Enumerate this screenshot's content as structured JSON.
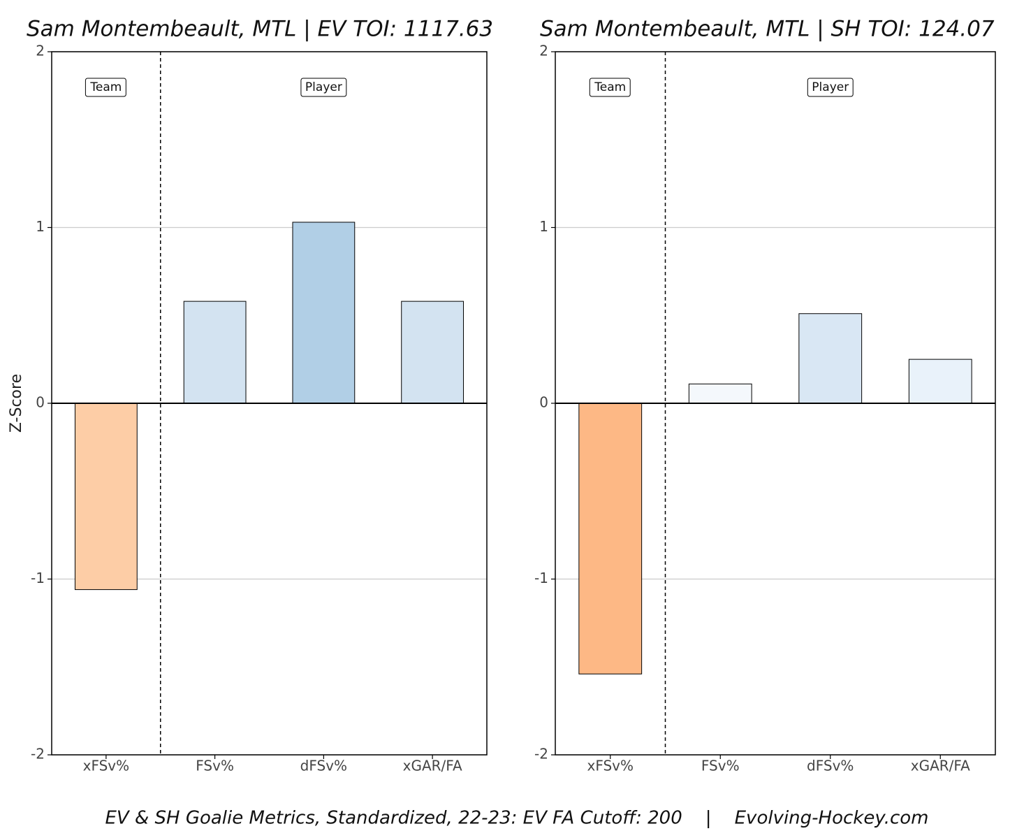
{
  "chart_data": [
    {
      "type": "bar",
      "title": "Sam Montembeault, MTL | EV TOI: 1117.63",
      "ylabel": "Z-Score",
      "categories": [
        "xFSv%",
        "FSv%",
        "dFSv%",
        "xGAR/FA"
      ],
      "values": [
        -1.06,
        0.58,
        1.03,
        0.58
      ],
      "colors": [
        "#fdcda6",
        "#d3e3f1",
        "#b1cfe6",
        "#d3e3f1"
      ],
      "annotations": [
        "Team",
        "Player"
      ],
      "ylim": [
        -2,
        2
      ],
      "yticks": [
        -2,
        -1,
        0,
        1,
        2
      ],
      "grid": true
    },
    {
      "type": "bar",
      "title": "Sam Montembeault, MTL | SH TOI: 124.07",
      "categories": [
        "xFSv%",
        "FSv%",
        "dFSv%",
        "xGAR/FA"
      ],
      "values": [
        -1.54,
        0.11,
        0.51,
        0.25
      ],
      "colors": [
        "#fdb885",
        "#f4f8fc",
        "#d9e7f4",
        "#e9f2fa"
      ],
      "annotations": [
        "Team",
        "Player"
      ],
      "ylim": [
        -2,
        2
      ],
      "yticks": [
        -2,
        -1,
        0,
        1,
        2
      ],
      "grid": true
    }
  ],
  "footer": "EV & SH Goalie Metrics, Standardized, 22-23: EV FA Cutoff: 200    |    Evolving-Hockey.com"
}
